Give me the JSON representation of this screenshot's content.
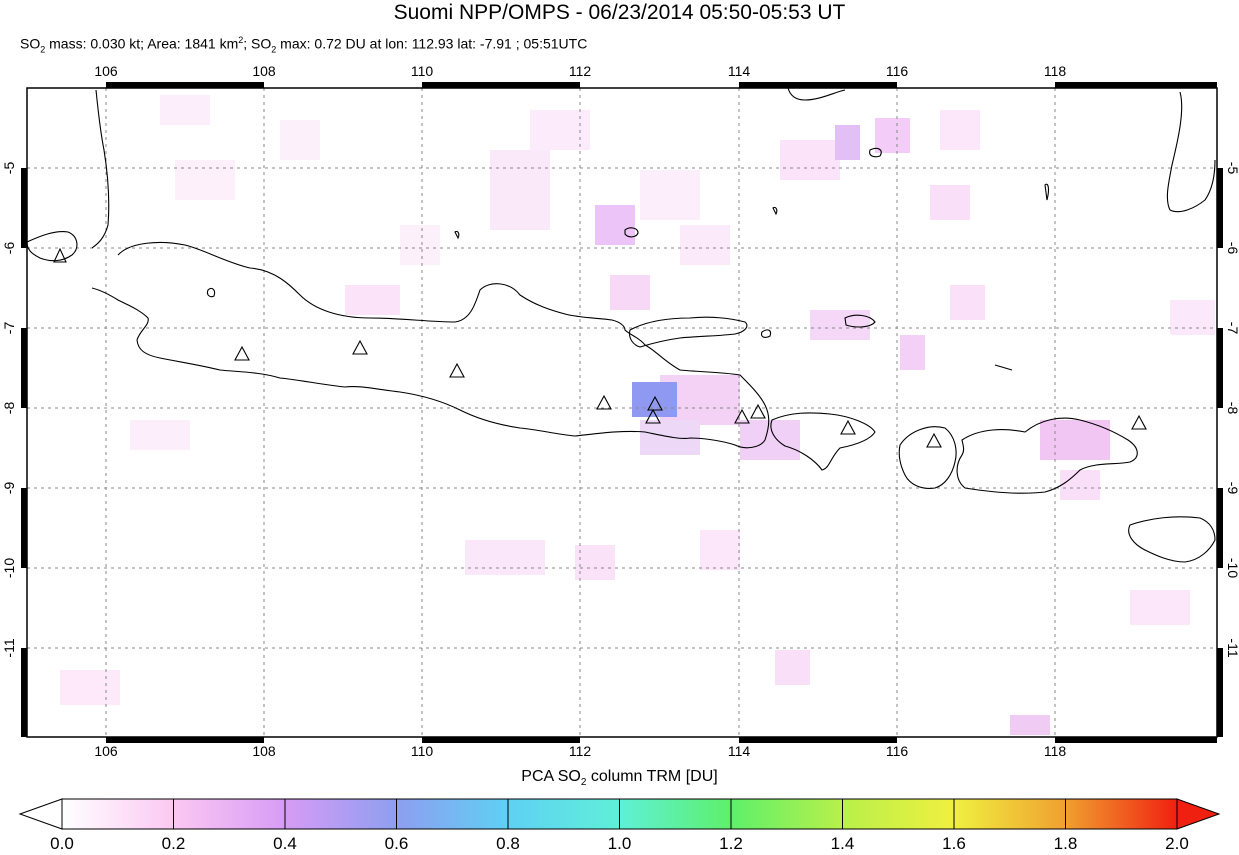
{
  "title": "Suomi NPP/OMPS - 06/23/2014 05:50-05:53 UT",
  "subtitle": {
    "so2_label": "SO",
    "mass_text": " mass: 0.030 kt; Area: 1841 km",
    "area_sup": "2",
    "max_prefix": "; SO",
    "max_text": " max: 0.72 DU at lon: 112.93 lat: -7.91 ; 05:51UTC",
    "sub2": "2"
  },
  "map": {
    "lon_ticks": [
      "106",
      "108",
      "110",
      "112",
      "114",
      "116",
      "118"
    ],
    "lat_ticks": [
      "-5",
      "-6",
      "-7",
      "-8",
      "-9",
      "-10",
      "-11"
    ],
    "volcanoes_count_note": "",
    "colors": {
      "frame": "#000000",
      "grid": "#888888",
      "max_pixel": "#8f99f2"
    }
  },
  "colorbar": {
    "title_prefix": "PCA SO",
    "title_sub": "2",
    "title_suffix": " column TRM [DU]",
    "ticks": [
      "0.0",
      "0.2",
      "0.4",
      "0.6",
      "0.8",
      "1.0",
      "1.2",
      "1.4",
      "1.6",
      "1.8",
      "2.0"
    ],
    "range": [
      0.0,
      2.0
    ],
    "colors": [
      "#ffffff",
      "#fbc8f2",
      "#d69cf5",
      "#8e9ef0",
      "#5fd0f4",
      "#5ff0d8",
      "#5ef06a",
      "#b8f04a",
      "#f0f040",
      "#f0a030",
      "#f02010"
    ]
  }
}
